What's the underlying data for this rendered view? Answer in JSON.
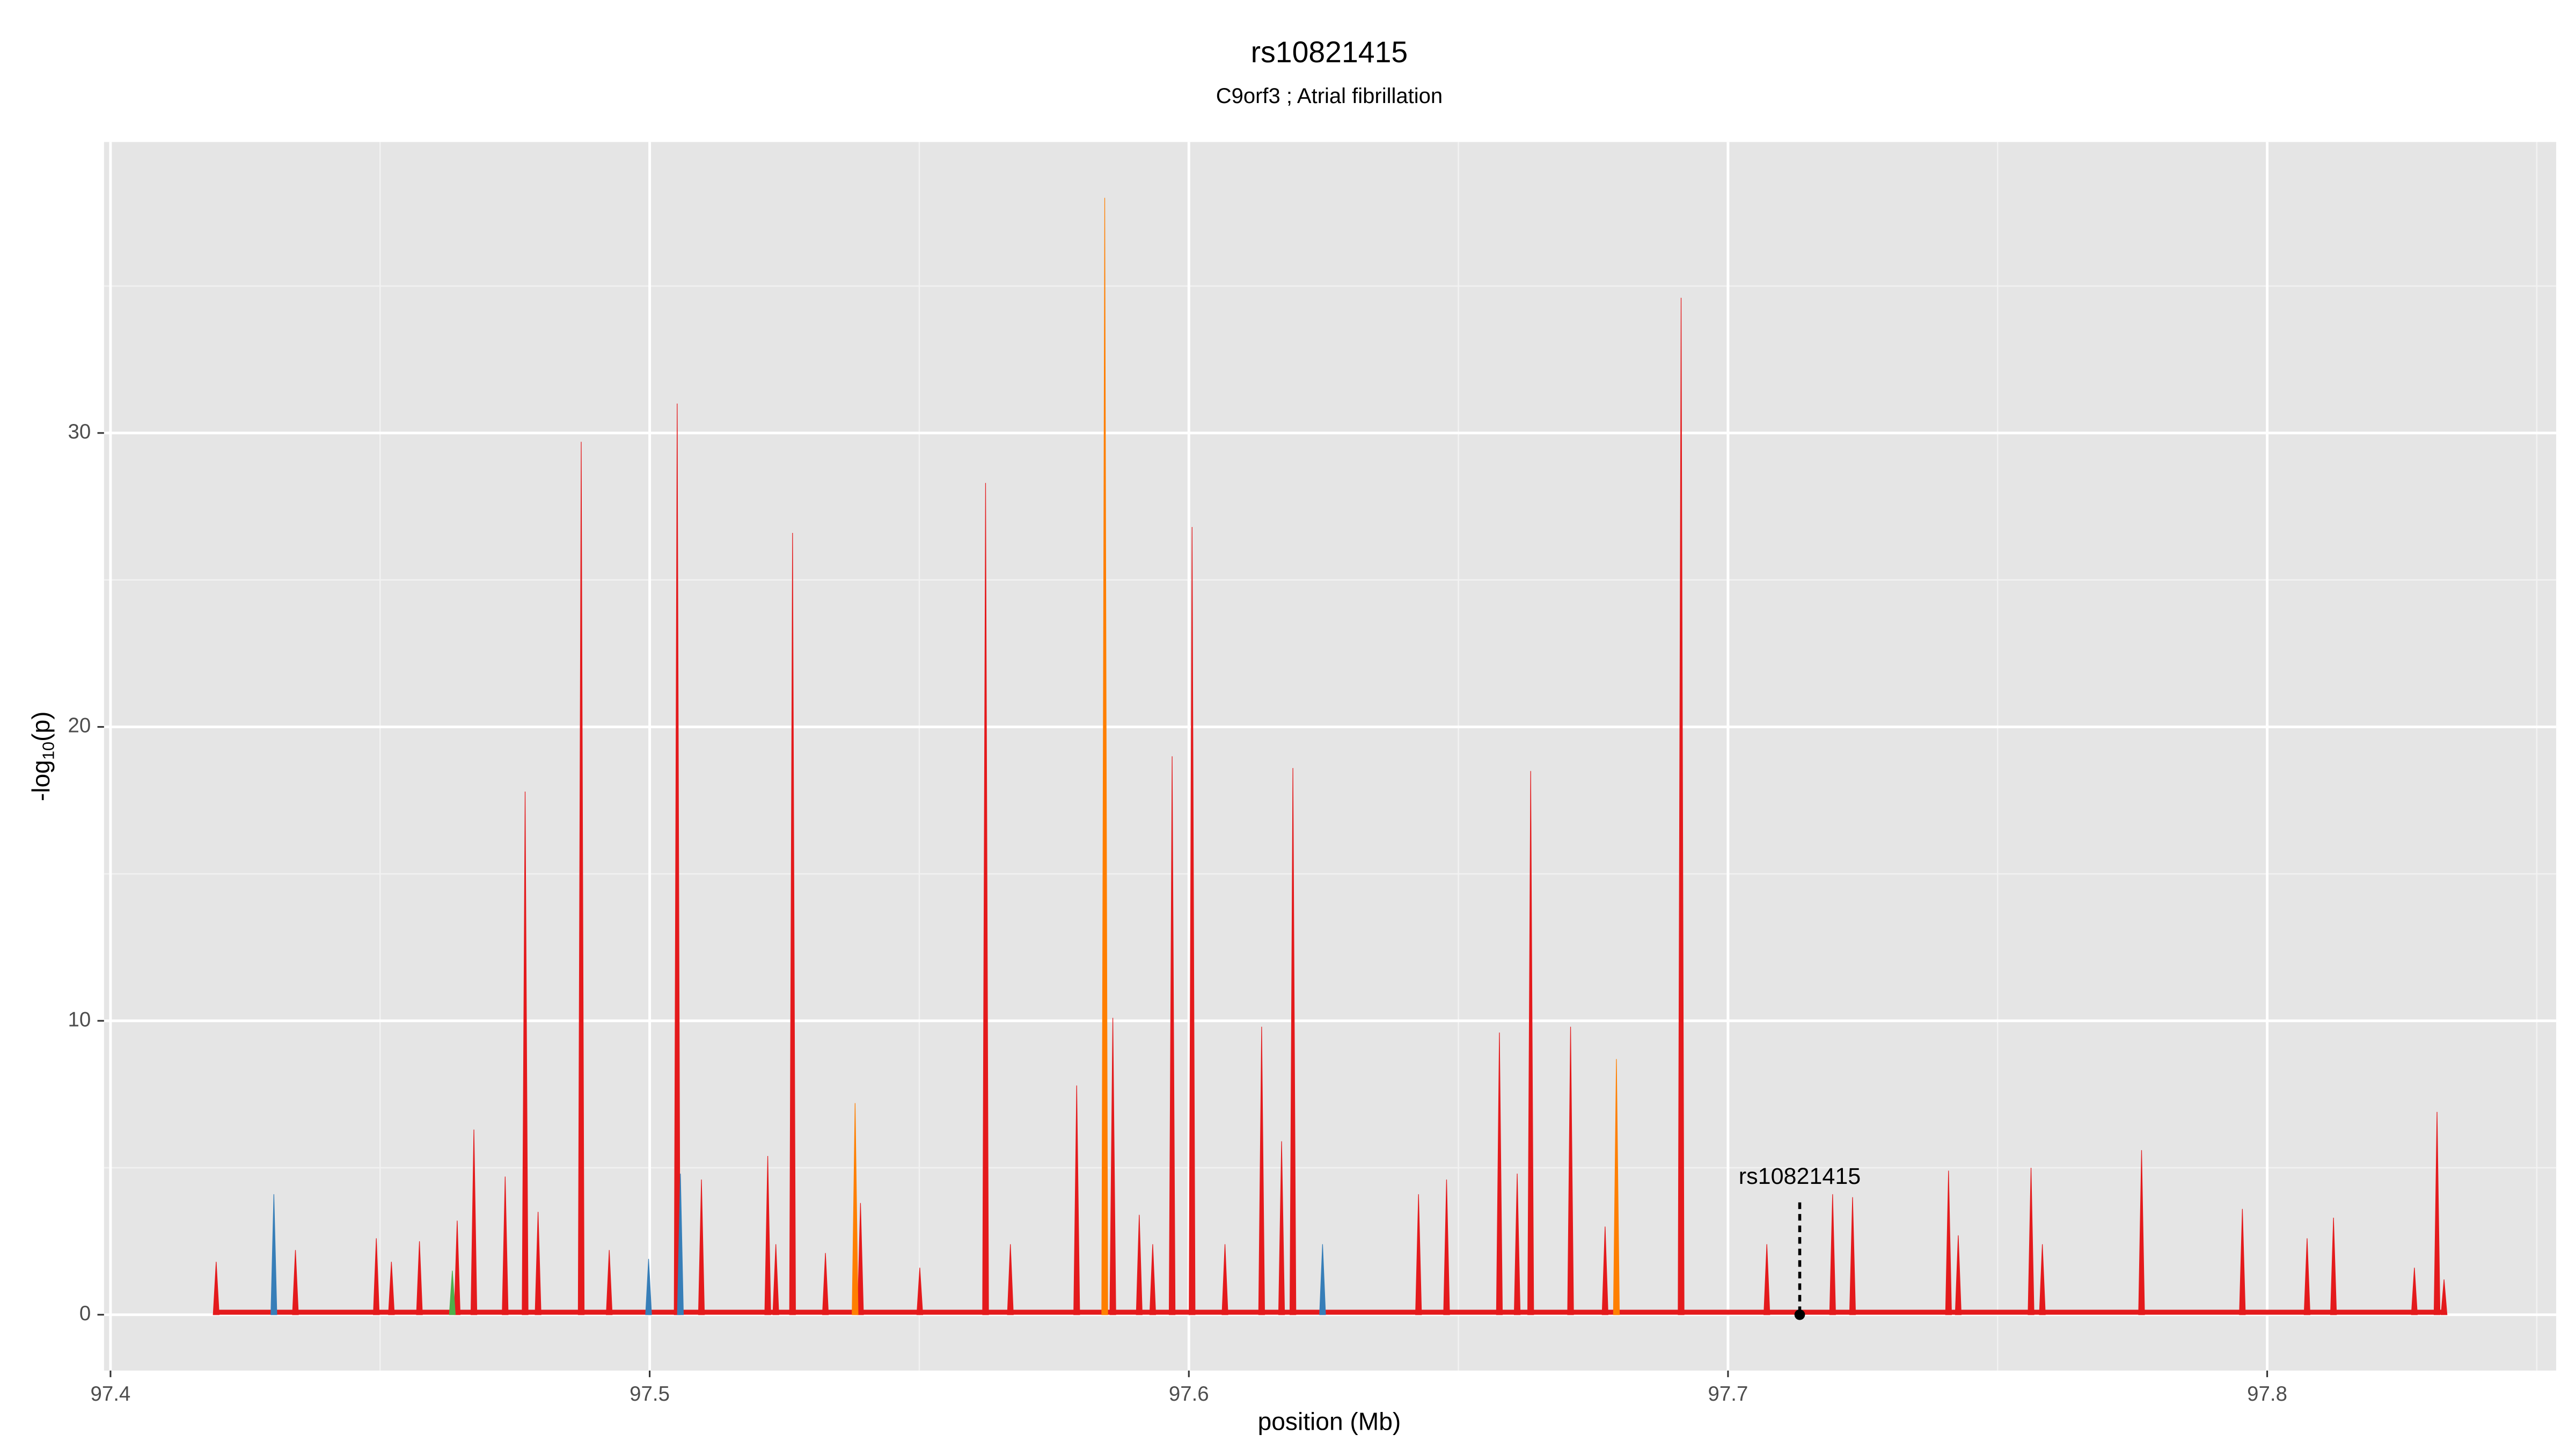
{
  "chart_data": {
    "type": "spike",
    "title": "rs10821415",
    "subtitle": "C9orf3 ; Atrial fibrillation",
    "x_label": "position (Mb)",
    "y_label": {
      "prefix": "-log",
      "sub": "10",
      "suffix": "(p)"
    },
    "xlim": [
      97.3988,
      97.8536
    ],
    "ylim": [
      -1.9,
      39.9
    ],
    "xticks": [
      97.4,
      97.5,
      97.6,
      97.7,
      97.8
    ],
    "yticks": [
      0,
      10,
      20,
      30
    ],
    "x_minor_ticks": [
      97.45,
      97.55,
      97.65,
      97.75,
      97.85
    ],
    "y_minor_ticks": [
      5,
      15,
      25,
      35
    ],
    "grid": true,
    "series": [
      {
        "color": "#e41a1c",
        "x": [
          97.4196,
          97.4343,
          97.4493,
          97.4521,
          97.4573,
          97.4643,
          97.4674,
          97.4732,
          97.4769,
          97.4793,
          97.4873,
          97.4925,
          97.5051,
          97.5096,
          97.5219,
          97.5234,
          97.5265,
          97.5326,
          97.5391,
          97.5501,
          97.5623,
          97.5669,
          97.5792,
          97.5859,
          97.5908,
          97.5933,
          97.5969,
          97.6006,
          97.6067,
          97.6135,
          97.6172,
          97.6193,
          97.6426,
          97.6478,
          97.6576,
          97.6609,
          97.6634,
          97.6708,
          97.6772,
          97.6913,
          97.7072,
          97.7194,
          97.7231,
          97.7409,
          97.7427,
          97.7562,
          97.7583,
          97.7767,
          97.7954,
          97.8074,
          97.8123,
          97.8273,
          97.8315,
          97.8328
        ],
        "values": [
          1.8,
          2.2,
          2.6,
          1.8,
          2.5,
          3.2,
          6.3,
          4.7,
          17.8,
          3.5,
          29.7,
          2.2,
          31,
          4.6,
          5.4,
          2.4,
          26.6,
          2.1,
          3.8,
          1.6,
          28.3,
          2.4,
          7.8,
          10.1,
          3.4,
          2.4,
          19,
          26.8,
          2.4,
          9.8,
          5.9,
          18.6,
          4.1,
          4.6,
          9.6,
          4.8,
          18.5,
          9.8,
          3,
          34.6,
          2.4,
          4.1,
          4,
          4.9,
          2.7,
          5,
          2.4,
          5.6,
          3.6,
          2.6,
          3.3,
          1.6,
          6.9,
          1.2
        ]
      },
      {
        "color": "#ff7f00",
        "x": [
          97.5381,
          97.5844,
          97.6793
        ],
        "values": [
          7.2,
          38,
          8.7
        ]
      },
      {
        "color": "#377eb8",
        "x": [
          97.4303,
          97.4998,
          97.5057,
          97.6248
        ],
        "values": [
          4.1,
          1.9,
          4.8,
          2.4
        ]
      },
      {
        "color": "#4daf4a",
        "x": [
          97.4634
        ],
        "values": [
          1.5
        ]
      }
    ],
    "annotations": [
      {
        "label": "rs10821415",
        "x": 97.7133,
        "y": 0
      }
    ]
  }
}
